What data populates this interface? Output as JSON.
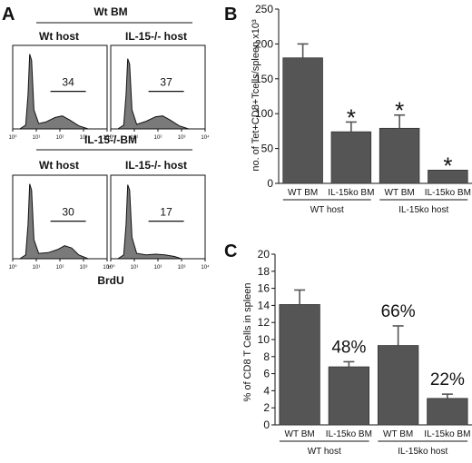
{
  "panels": {
    "A": {
      "letter": "A",
      "group_titles": [
        "Wt BM",
        "IL-15-/-BM"
      ],
      "xlabel": "BrdU",
      "x_ticks": [
        "10⁰",
        "10¹",
        "10²",
        "10³",
        "10⁴"
      ],
      "histograms": [
        {
          "title": "Wt host",
          "gate_value": "34"
        },
        {
          "title": "IL-15-/- host",
          "gate_value": "37"
        },
        {
          "title": "Wt host",
          "gate_value": "30"
        },
        {
          "title": "IL-15-/- host",
          "gate_value": "17"
        }
      ]
    },
    "B": {
      "letter": "B"
    },
    "C": {
      "letter": "C"
    }
  },
  "chart_data": [
    {
      "type": "histogram",
      "panel": "A",
      "xscale": "log",
      "xlim": [
        1,
        10000
      ],
      "xlabel": "BrdU",
      "group_titles": [
        "Wt BM",
        "IL-15-/-BM"
      ],
      "gate_range_log10": [
        1.6,
        3.1
      ],
      "histograms": [
        {
          "group": "Wt BM",
          "host": "Wt host",
          "gate_percent": 34,
          "profile": [
            [
              0.3,
              0
            ],
            [
              0.55,
              0.05
            ],
            [
              0.65,
              0.45
            ],
            [
              0.72,
              0.98
            ],
            [
              0.8,
              0.9
            ],
            [
              0.9,
              0.25
            ],
            [
              1.1,
              0.07
            ],
            [
              1.4,
              0.09
            ],
            [
              1.8,
              0.15
            ],
            [
              2.1,
              0.17
            ],
            [
              2.4,
              0.12
            ],
            [
              2.8,
              0.04
            ],
            [
              3.2,
              0
            ]
          ]
        },
        {
          "group": "Wt BM",
          "host": "IL-15-/- host",
          "gate_percent": 37,
          "profile": [
            [
              0.3,
              0
            ],
            [
              0.55,
              0.05
            ],
            [
              0.65,
              0.45
            ],
            [
              0.72,
              0.92
            ],
            [
              0.8,
              0.85
            ],
            [
              0.9,
              0.25
            ],
            [
              1.1,
              0.06
            ],
            [
              1.5,
              0.1
            ],
            [
              1.9,
              0.16
            ],
            [
              2.2,
              0.17
            ],
            [
              2.5,
              0.12
            ],
            [
              2.9,
              0.04
            ],
            [
              3.3,
              0
            ]
          ]
        },
        {
          "group": "IL-15-/-BM",
          "host": "Wt host",
          "gate_percent": 30,
          "profile": [
            [
              0.3,
              0
            ],
            [
              0.55,
              0.05
            ],
            [
              0.65,
              0.45
            ],
            [
              0.72,
              0.98
            ],
            [
              0.8,
              0.9
            ],
            [
              0.9,
              0.25
            ],
            [
              1.1,
              0.07
            ],
            [
              1.5,
              0.08
            ],
            [
              1.9,
              0.12
            ],
            [
              2.2,
              0.17
            ],
            [
              2.5,
              0.14
            ],
            [
              2.8,
              0.05
            ],
            [
              3.2,
              0
            ]
          ]
        },
        {
          "group": "IL-15-/-BM",
          "host": "IL-15-/- host",
          "gate_percent": 17,
          "profile": [
            [
              0.3,
              0
            ],
            [
              0.55,
              0.05
            ],
            [
              0.65,
              0.45
            ],
            [
              0.72,
              0.97
            ],
            [
              0.8,
              0.9
            ],
            [
              0.9,
              0.28
            ],
            [
              1.1,
              0.07
            ],
            [
              1.5,
              0.05
            ],
            [
              1.9,
              0.06
            ],
            [
              2.3,
              0.05
            ],
            [
              2.7,
              0.03
            ],
            [
              3.0,
              0
            ]
          ]
        }
      ]
    },
    {
      "type": "bar",
      "panel": "B",
      "categories": [
        "WT BM",
        "IL-15ko BM",
        "WT BM",
        "IL-15ko BM"
      ],
      "groups": [
        "WT host",
        "IL-15ko host"
      ],
      "values": [
        180,
        74,
        79,
        19
      ],
      "errors": [
        20,
        14,
        19,
        0
      ],
      "significance": [
        "",
        "*",
        "*",
        "*"
      ],
      "ylabel": "no. of Tet+CD8+Tcells/spleen x10³",
      "ylim": [
        0,
        250
      ],
      "yticks": [
        0,
        50,
        100,
        150,
        200,
        250
      ]
    },
    {
      "type": "bar",
      "panel": "C",
      "categories": [
        "WT BM",
        "IL-15ko BM",
        "WT BM",
        "IL-15ko BM"
      ],
      "groups": [
        "WT host",
        "IL-15ko host"
      ],
      "values": [
        14.1,
        6.8,
        9.3,
        3.1
      ],
      "errors": [
        1.7,
        0.6,
        2.3,
        0.5
      ],
      "bar_labels": [
        "",
        "48%",
        "66%",
        "22%"
      ],
      "ylabel": "% of CD8 T Cells in spleen",
      "ylim": [
        0,
        20
      ],
      "yticks": [
        0,
        2,
        4,
        6,
        8,
        10,
        12,
        14,
        16,
        18,
        20
      ]
    }
  ],
  "colors": {
    "bar": "#555555",
    "histogram_fill": "#7a7a7a",
    "line": "#111111"
  }
}
